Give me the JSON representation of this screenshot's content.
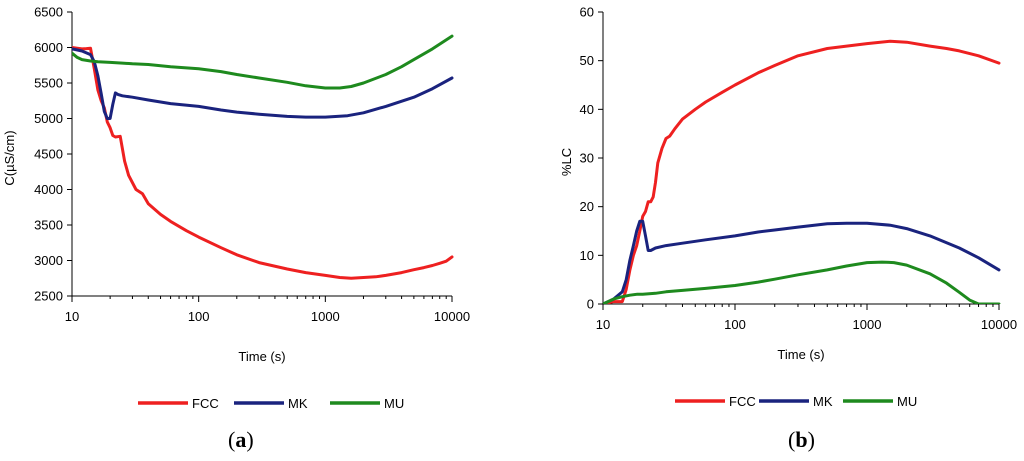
{
  "chart_data": [
    {
      "type": "line",
      "panel": "a",
      "xscale": "log",
      "xlabel": "Time (s)",
      "ylabel": "C(µS/cm)",
      "xlim": [
        10,
        10000
      ],
      "ylim": [
        2500,
        6500
      ],
      "xticks": [
        "10",
        "100",
        "1000",
        "10000"
      ],
      "yticks": [
        "2500",
        "3000",
        "3500",
        "4000",
        "4500",
        "5000",
        "5500",
        "6000",
        "6500"
      ],
      "legend_position": "bottom",
      "series": [
        {
          "name": "FCC",
          "color": "#ee2020",
          "x": [
            10,
            11,
            12,
            13,
            14,
            15,
            16,
            17,
            18,
            19,
            20,
            21,
            22,
            24,
            26,
            28,
            32,
            36,
            40,
            50,
            60,
            80,
            100,
            150,
            200,
            300,
            500,
            700,
            1000,
            1300,
            1600,
            2000,
            2500,
            3000,
            4000,
            5000,
            6000,
            7000,
            8000,
            9000,
            10000
          ],
          "y": [
            6000,
            5990,
            5980,
            5985,
            5990,
            5700,
            5400,
            5250,
            5150,
            4950,
            4870,
            4760,
            4740,
            4750,
            4400,
            4200,
            4000,
            3940,
            3800,
            3650,
            3550,
            3420,
            3330,
            3180,
            3080,
            2970,
            2880,
            2830,
            2790,
            2760,
            2750,
            2760,
            2770,
            2790,
            2830,
            2870,
            2900,
            2930,
            2960,
            2990,
            3050
          ]
        },
        {
          "name": "MK",
          "color": "#1a237e",
          "x": [
            10,
            12,
            14,
            15,
            16,
            17,
            18,
            19,
            20,
            21,
            22,
            23,
            25,
            30,
            40,
            60,
            100,
            150,
            200,
            300,
            500,
            700,
            1000,
            1500,
            2000,
            3000,
            5000,
            7000,
            10000
          ],
          "y": [
            5980,
            5950,
            5900,
            5800,
            5600,
            5350,
            5100,
            5000,
            5000,
            5200,
            5360,
            5340,
            5320,
            5300,
            5260,
            5210,
            5170,
            5120,
            5090,
            5060,
            5030,
            5020,
            5020,
            5040,
            5080,
            5170,
            5300,
            5420,
            5570
          ]
        },
        {
          "name": "MU",
          "color": "#1e8a1e",
          "x": [
            10,
            11,
            12,
            14,
            16,
            20,
            25,
            30,
            40,
            60,
            100,
            150,
            200,
            300,
            500,
            700,
            1000,
            1300,
            1600,
            2000,
            3000,
            4000,
            5000,
            7000,
            10000
          ],
          "y": [
            5920,
            5860,
            5830,
            5810,
            5800,
            5790,
            5780,
            5770,
            5760,
            5730,
            5700,
            5660,
            5620,
            5570,
            5510,
            5460,
            5430,
            5430,
            5450,
            5500,
            5620,
            5730,
            5830,
            5980,
            6160
          ]
        }
      ]
    },
    {
      "type": "line",
      "panel": "b",
      "xscale": "log",
      "xlabel": "Time (s)",
      "ylabel": "%LC",
      "xlim": [
        10,
        10000
      ],
      "ylim": [
        0,
        60
      ],
      "xticks": [
        "10",
        "100",
        "1000",
        "10000"
      ],
      "yticks": [
        "0",
        "10",
        "20",
        "30",
        "40",
        "50",
        "60"
      ],
      "legend_position": "bottom",
      "series": [
        {
          "name": "FCC",
          "color": "#ee2020",
          "x": [
            10,
            12,
            14,
            15,
            16,
            17,
            18,
            19,
            20,
            21,
            22,
            23,
            24,
            25,
            26,
            28,
            30,
            32,
            35,
            40,
            50,
            60,
            80,
            100,
            150,
            200,
            300,
            500,
            700,
            1000,
            1500,
            2000,
            3000,
            4000,
            5000,
            7000,
            10000
          ],
          "y": [
            0,
            0.5,
            0.5,
            3,
            7,
            10,
            12,
            15,
            18,
            19,
            21,
            21,
            22,
            25,
            29,
            32,
            34,
            34.5,
            36,
            38,
            40,
            41.5,
            43.5,
            45,
            47.5,
            49,
            51,
            52.5,
            53,
            53.5,
            54,
            53.8,
            53,
            52.5,
            52,
            51,
            49.5
          ]
        },
        {
          "name": "MK",
          "color": "#1a237e",
          "x": [
            10,
            12,
            14,
            15,
            16,
            17,
            18,
            19,
            20,
            21,
            22,
            23,
            25,
            30,
            40,
            60,
            100,
            150,
            200,
            300,
            500,
            700,
            1000,
            1500,
            2000,
            3000,
            5000,
            7000,
            10000
          ],
          "y": [
            0,
            1,
            2.5,
            5,
            9,
            12,
            15,
            17,
            17,
            14,
            11,
            11,
            11.5,
            12,
            12.5,
            13.2,
            14,
            14.8,
            15.2,
            15.8,
            16.5,
            16.6,
            16.6,
            16.2,
            15.5,
            14,
            11.5,
            9.5,
            7
          ]
        },
        {
          "name": "MU",
          "color": "#1e8a1e",
          "x": [
            10,
            12,
            14,
            16,
            18,
            20,
            25,
            30,
            40,
            60,
            100,
            150,
            200,
            300,
            500,
            700,
            1000,
            1300,
            1600,
            2000,
            3000,
            4000,
            5000,
            6000,
            7000,
            8000,
            10000
          ],
          "y": [
            0,
            1,
            1.5,
            1.8,
            2,
            2,
            2.2,
            2.5,
            2.8,
            3.2,
            3.8,
            4.5,
            5.1,
            6,
            7,
            7.8,
            8.5,
            8.6,
            8.5,
            8,
            6.2,
            4.3,
            2.4,
            0.8,
            0,
            0,
            0
          ]
        }
      ]
    }
  ],
  "panels": [
    {
      "label_open": "(",
      "label_letter": "a",
      "label_close": ")"
    },
    {
      "label_open": "(",
      "label_letter": "b",
      "label_close": ")"
    }
  ]
}
